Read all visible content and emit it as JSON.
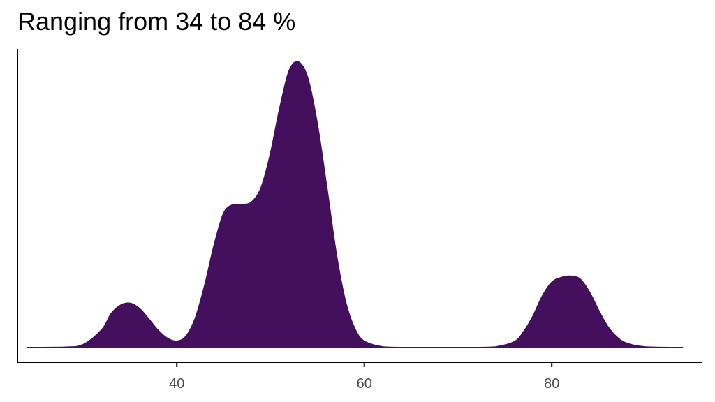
{
  "chart_data": {
    "type": "area",
    "title": "Ranging from 34 to 84 %",
    "xlabel": "",
    "ylabel": "",
    "xlim": [
      23,
      96
    ],
    "ylim": [
      0,
      1
    ],
    "xticks": [
      40,
      60,
      80
    ],
    "yticks": [],
    "grid": false,
    "legend": "none",
    "fill_color": "#440f5d",
    "line_color": "#440f5d",
    "series": [
      {
        "x": [
          24,
          28,
          30,
          32,
          33,
          34,
          35,
          36,
          37,
          38,
          39,
          40,
          41,
          42,
          43,
          44,
          45,
          46,
          47,
          48,
          49,
          50,
          51,
          52,
          53,
          54,
          55,
          56,
          57,
          58,
          59,
          60,
          62,
          64,
          66,
          68,
          70,
          72,
          74,
          76,
          77,
          78,
          79,
          80,
          81,
          82,
          83,
          84,
          85,
          86,
          87,
          88,
          90,
          94
        ],
        "y": [
          0.0,
          0.001,
          0.01,
          0.062,
          0.118,
          0.148,
          0.155,
          0.137,
          0.1,
          0.06,
          0.032,
          0.022,
          0.04,
          0.105,
          0.22,
          0.36,
          0.47,
          0.5,
          0.5,
          0.51,
          0.56,
          0.68,
          0.84,
          0.97,
          1.0,
          0.94,
          0.78,
          0.56,
          0.33,
          0.16,
          0.065,
          0.022,
          0.002,
          0.0,
          0.0,
          0.0,
          0.0,
          0.0,
          0.002,
          0.02,
          0.055,
          0.11,
          0.18,
          0.228,
          0.245,
          0.25,
          0.24,
          0.195,
          0.13,
          0.072,
          0.035,
          0.015,
          0.002,
          0.0
        ]
      }
    ]
  }
}
